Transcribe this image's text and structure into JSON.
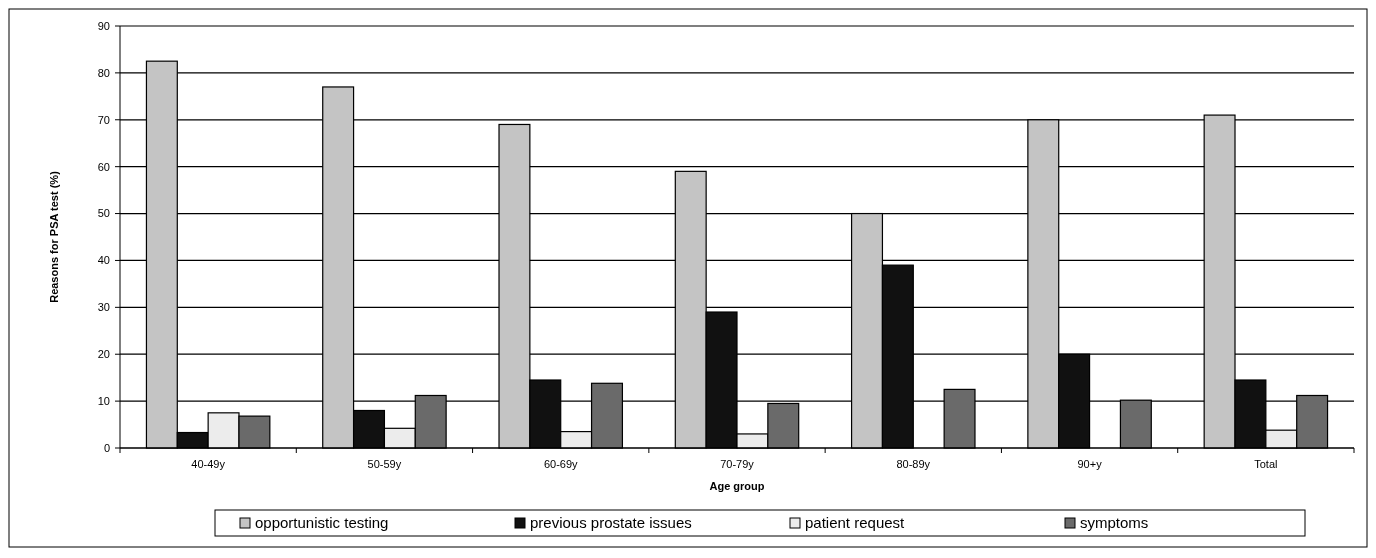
{
  "chart_data": {
    "type": "bar",
    "xlabel": "Age group",
    "ylabel": "Reasons for PSA test (%)",
    "categories": [
      "40-49y",
      "50-59y",
      "60-69y",
      "70-79y",
      "80-89y",
      "90+y",
      "Total"
    ],
    "series": [
      {
        "name": "opportunistic testing",
        "color": "#c4c4c4",
        "values": [
          82.5,
          77,
          69,
          59,
          50,
          70,
          71
        ]
      },
      {
        "name": "previous prostate issues",
        "color": "#111111",
        "values": [
          3.3,
          8,
          14.5,
          29,
          39,
          20,
          14.5
        ]
      },
      {
        "name": "patient request",
        "color": "#ececec",
        "values": [
          7.5,
          4.2,
          3.5,
          3,
          0,
          0,
          3.8
        ]
      },
      {
        "name": "symptoms",
        "color": "#6a6a6a",
        "values": [
          6.8,
          11.2,
          13.8,
          9.5,
          12.5,
          10.2,
          11.2
        ]
      }
    ],
    "ylim": [
      0,
      90
    ],
    "yticks": [
      0,
      10,
      20,
      30,
      40,
      50,
      60,
      70,
      80,
      90
    ],
    "grid": "y",
    "legend": "bottom"
  }
}
